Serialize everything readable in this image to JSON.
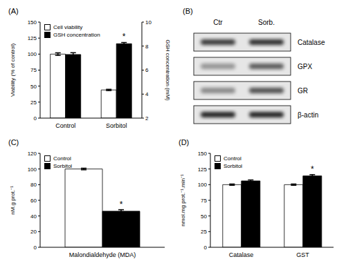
{
  "chart_data": [
    {
      "title": "(A)",
      "type": "bar",
      "categories": [
        "Control",
        "Sorbitol"
      ],
      "series": [
        {
          "name": "Cell viability",
          "color": "#ffffff",
          "values": [
            100,
            44
          ],
          "errors": [
            2,
            1
          ]
        },
        {
          "name": "GSH concentration",
          "color": "#000000",
          "values": [
            7.3,
            8.2
          ],
          "errors": [
            0.15,
            0.1
          ],
          "axis": "y2"
        }
      ],
      "ylim": [
        0,
        150
      ],
      "yticks": [
        0,
        25,
        50,
        75,
        100,
        125,
        150
      ],
      "y2lim": [
        2,
        10
      ],
      "y2ticks": [
        2,
        4,
        6,
        8,
        10
      ],
      "y_label": "Viability (% of control)",
      "y2_label": "GSH concentration (mM)",
      "legend": "upper left",
      "annotations": [
        {
          "text": "*",
          "category": "Sorbitol",
          "series": "GSH concentration"
        }
      ]
    },
    {
      "title": "(C)",
      "type": "bar",
      "categories": [
        "Malondialdehyde (MDA)"
      ],
      "series": [
        {
          "name": "Control",
          "color": "#ffffff",
          "values": [
            100
          ],
          "errors": [
            1
          ]
        },
        {
          "name": "Sorbitol",
          "color": "#000000",
          "values": [
            46
          ],
          "errors": [
            2
          ]
        }
      ],
      "ylim": [
        0,
        120
      ],
      "yticks": [
        0,
        20,
        40,
        60,
        80,
        100,
        120
      ],
      "y_label": "nM.g prot.⁻¹",
      "legend": "upper left",
      "annotations": [
        {
          "text": "*",
          "category": "Malondialdehyde (MDA)",
          "series": "Sorbitol"
        }
      ]
    },
    {
      "title": "(D)",
      "type": "bar",
      "categories": [
        "Catalase",
        "GST"
      ],
      "series": [
        {
          "name": "Control",
          "color": "#ffffff",
          "values": [
            100,
            100
          ],
          "errors": [
            1,
            1
          ]
        },
        {
          "name": "Sorbitol",
          "color": "#000000",
          "values": [
            106,
            114
          ],
          "errors": [
            1.5,
            2
          ]
        }
      ],
      "ylim": [
        0,
        150
      ],
      "yticks": [
        0,
        25,
        50,
        75,
        100,
        125,
        150
      ],
      "y_label": "nmol.mg prot.⁻¹.min⁻¹",
      "legend": "upper left",
      "annotations": [
        {
          "text": "*",
          "category": "GST",
          "series": "Sorbitol"
        }
      ]
    }
  ],
  "blot": {
    "title": "(B)",
    "lanes": [
      "Ctr",
      "Sorb."
    ],
    "bands": [
      "Catalase",
      "GPX",
      "GR",
      "β-actin"
    ]
  }
}
